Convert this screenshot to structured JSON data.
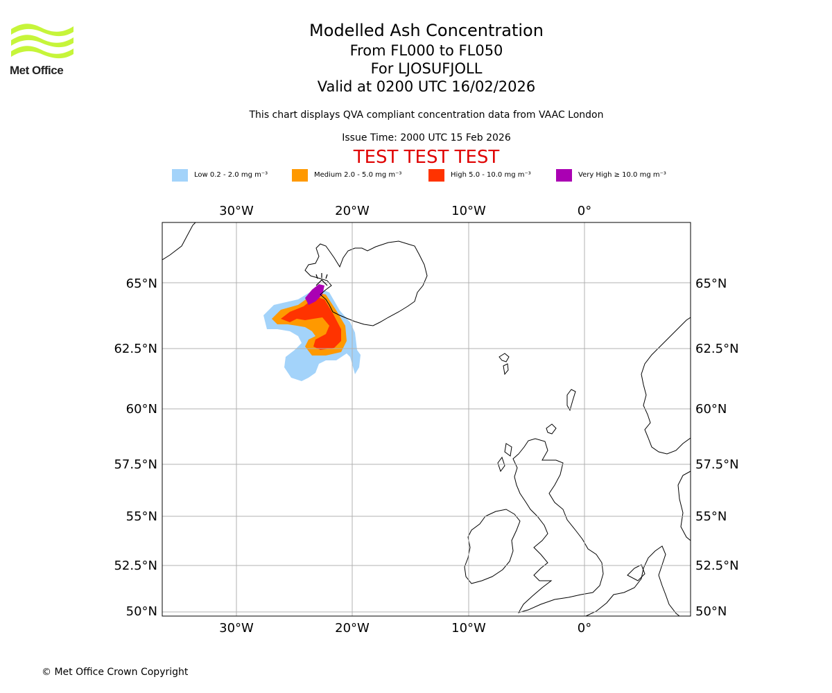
{
  "logo": {
    "text": "Met Office"
  },
  "title": {
    "line1": "Modelled Ash Concentration",
    "line2": "From FL000 to FL050",
    "line3": "For LJOSUFJOLL",
    "line4": "Valid at 0200 UTC 16/02/2026"
  },
  "subtitle": "This chart displays QVA compliant concentration data from VAAC London",
  "issue_time": "Issue Time: 2000 UTC 15 Feb 2026",
  "test_banner": "TEST TEST TEST",
  "legend": [
    {
      "label": "Low 0.2 - 2.0 mg m⁻³",
      "color": "#a3d3fa"
    },
    {
      "label": "Medium 2.0 - 5.0 mg m⁻³",
      "color": "#ff9900"
    },
    {
      "label": "High 5.0 - 10.0 mg m⁻³",
      "color": "#ff3300"
    },
    {
      "label": "Very High ≥ 10.0 mg m⁻³",
      "color": "#aa00b3"
    }
  ],
  "map": {
    "lon_labels": [
      "30°W",
      "20°W",
      "10°W",
      "0°"
    ],
    "lat_labels": [
      "65°N",
      "62.5°N",
      "60°N",
      "57.5°N",
      "55°N",
      "52.5°N",
      "50°N"
    ],
    "gridline_color": "#b0b0b0",
    "coastline_color": "#000000"
  },
  "copyright": "© Met Office Crown Copyright"
}
